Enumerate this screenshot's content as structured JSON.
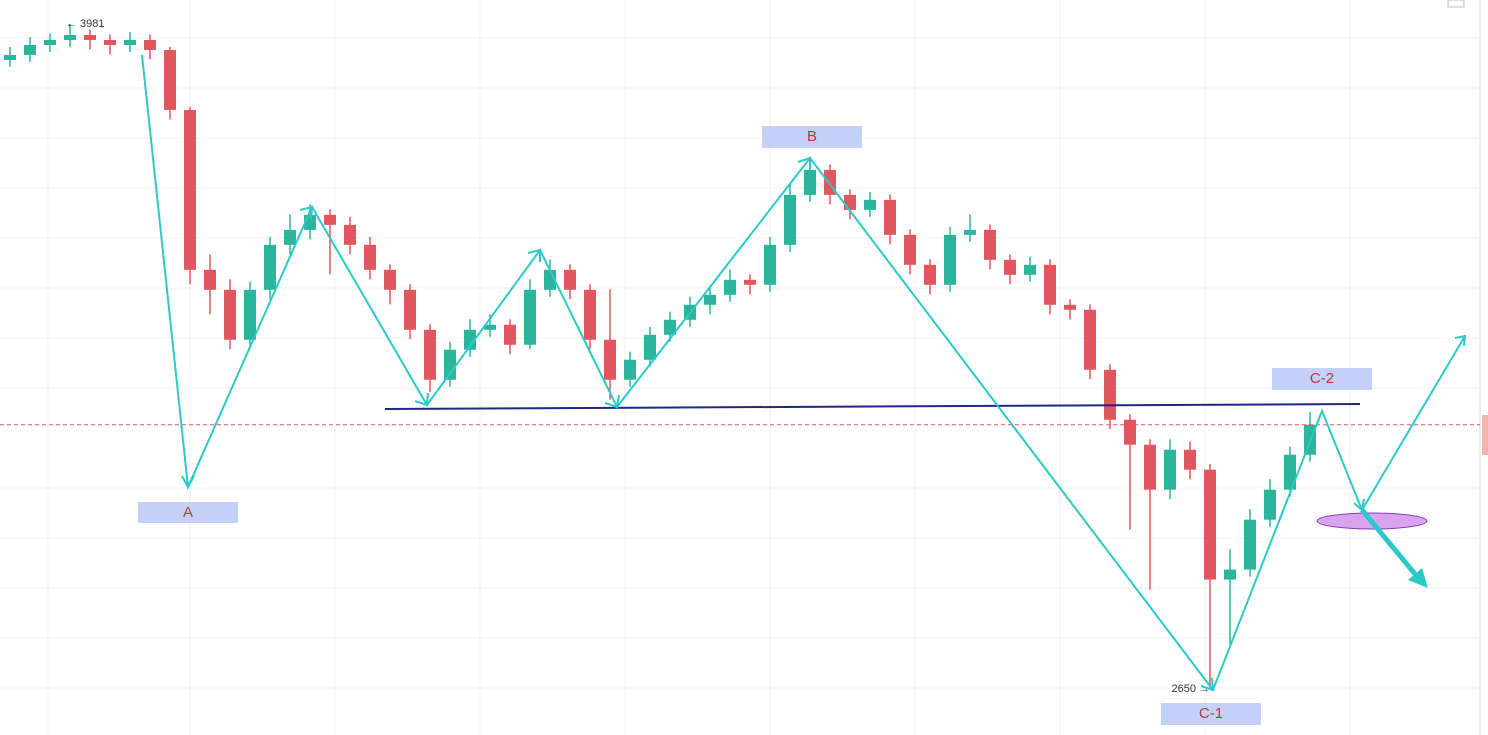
{
  "chart_data": {
    "type": "candlestick",
    "open": [
      3909,
      3919,
      3939,
      3949,
      3959,
      3949,
      3939,
      3949,
      3929,
      3809,
      3489,
      3449,
      3349,
      3449,
      3539,
      3569,
      3599,
      3579,
      3539,
      3489,
      3449,
      3369,
      3269,
      3329,
      3369,
      3379,
      3339,
      3449,
      3489,
      3449,
      3349,
      3269,
      3309,
      3359,
      3389,
      3419,
      3439,
      3469,
      3459,
      3539,
      3639,
      3689,
      3639,
      3609,
      3629,
      3559,
      3499,
      3459,
      3559,
      3569,
      3509,
      3479,
      3499,
      3419,
      3409,
      3289,
      3189,
      3139,
      3049,
      3129,
      3089,
      2869,
      2889,
      2989,
      3049,
      3119
    ],
    "high": [
      3935,
      3955,
      3962,
      3981,
      3970,
      3960,
      3965,
      3960,
      3935,
      3815,
      3520,
      3470,
      3465,
      3555,
      3600,
      3620,
      3610,
      3595,
      3555,
      3500,
      3460,
      3380,
      3345,
      3390,
      3400,
      3390,
      3470,
      3510,
      3500,
      3460,
      3450,
      3325,
      3375,
      3405,
      3435,
      3455,
      3490,
      3480,
      3555,
      3660,
      3705,
      3700,
      3650,
      3645,
      3640,
      3570,
      3510,
      3575,
      3600,
      3580,
      3520,
      3515,
      3510,
      3430,
      3420,
      3300,
      3200,
      3150,
      3150,
      3145,
      3100,
      2930,
      3010,
      3070,
      3135,
      3205
    ],
    "low": [
      3895,
      3905,
      3925,
      3935,
      3930,
      3920,
      3925,
      3910,
      3790,
      3460,
      3400,
      3330,
      3335,
      3430,
      3520,
      3550,
      3480,
      3520,
      3470,
      3420,
      3350,
      3245,
      3255,
      3315,
      3355,
      3320,
      3330,
      3435,
      3430,
      3330,
      3229,
      3255,
      3295,
      3345,
      3375,
      3400,
      3425,
      3440,
      3445,
      3525,
      3625,
      3620,
      3590,
      3595,
      3540,
      3480,
      3440,
      3445,
      3545,
      3490,
      3460,
      3465,
      3400,
      3390,
      3270,
      3170,
      2969,
      2849,
      3030,
      3070,
      2650,
      2740,
      2875,
      2975,
      3035,
      3105
    ],
    "close": [
      3919,
      3939,
      3949,
      3959,
      3949,
      3939,
      3949,
      3929,
      3809,
      3489,
      3449,
      3349,
      3449,
      3539,
      3569,
      3599,
      3579,
      3539,
      3489,
      3449,
      3369,
      3269,
      3329,
      3369,
      3379,
      3339,
      3449,
      3489,
      3449,
      3349,
      3269,
      3309,
      3359,
      3389,
      3419,
      3439,
      3469,
      3459,
      3539,
      3639,
      3689,
      3639,
      3609,
      3629,
      3559,
      3499,
      3459,
      3559,
      3569,
      3509,
      3479,
      3499,
      3419,
      3409,
      3289,
      3189,
      3139,
      3049,
      3129,
      3089,
      2869,
      2889,
      2989,
      3049,
      3119,
      3179
    ],
    "up_color": "#2bb59a",
    "down_color": "#e0575f",
    "ylim": [
      2558,
      4029
    ],
    "annotations": [
      {
        "label": "← 3981",
        "value": 3981
      },
      {
        "label": "2650 →",
        "value": 2650
      }
    ],
    "wave_labels": [
      "A",
      "B",
      "C-1",
      "C-2"
    ]
  }
}
